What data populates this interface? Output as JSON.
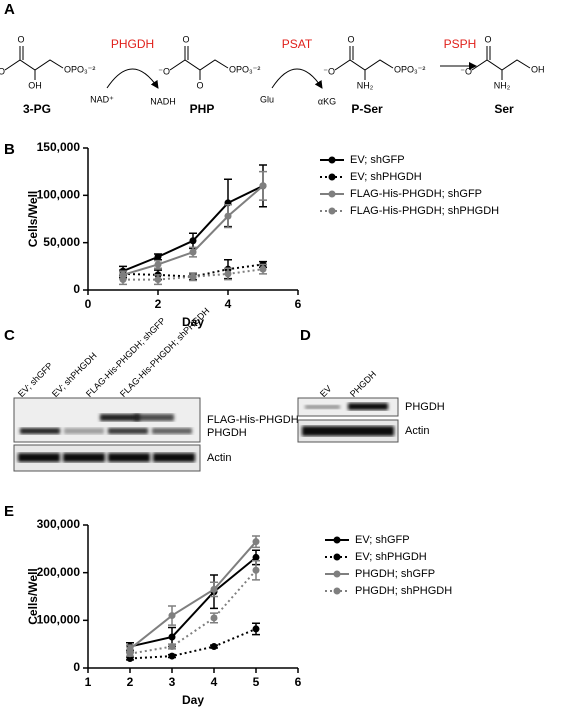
{
  "panel_a": {
    "letter": "A",
    "molecules": [
      {
        "name": "3-PG",
        "atoms": [
          "O",
          "⁻O",
          "OH",
          "OPO₃⁻²"
        ]
      },
      {
        "name": "PHP",
        "atoms": [
          "O",
          "⁻O",
          "O",
          "OPO₃⁻²"
        ]
      },
      {
        "name": "P-Ser",
        "atoms": [
          "O",
          "⁻O",
          "NH₂",
          "OPO₃⁻²"
        ]
      },
      {
        "name": "Ser",
        "atoms": [
          "O",
          "⁻O",
          "NH₂",
          "OH"
        ]
      }
    ],
    "enzymes": [
      "PHGDH",
      "PSAT",
      "PSPH"
    ],
    "cofactors": [
      [
        "NAD⁺",
        "NADH"
      ],
      [
        "Glu",
        "αKG"
      ]
    ]
  },
  "chart_data": [
    {
      "type": "line",
      "letter": "B",
      "x_label": "Day",
      "y_label": "Cells/Well",
      "x": [
        1,
        2,
        3,
        4,
        5
      ],
      "xlim": [
        0,
        6
      ],
      "xticks": [
        0,
        2,
        4,
        6
      ],
      "ylim": [
        0,
        150000
      ],
      "yticks": [
        0,
        {
          "value": 50000,
          "label": "50,000"
        },
        {
          "value": 100000,
          "label": "100,000"
        },
        {
          "value": 150000,
          "label": "150,000"
        }
      ],
      "series": [
        {
          "name": "EV; shGFP",
          "color": "#000000",
          "line_style": "solid",
          "values": [
            20000,
            35000,
            52000,
            92000,
            110000
          ],
          "errors": [
            5000,
            3000,
            8000,
            25000,
            22000
          ]
        },
        {
          "name": "EV; shPHGDH",
          "color": "#000000",
          "line_style": "dotted",
          "values": [
            17000,
            16000,
            14000,
            22000,
            27000
          ],
          "errors": [
            4000,
            5000,
            3000,
            10000,
            3000
          ]
        },
        {
          "name": "FLAG-His-PHGDH; shGFP",
          "color": "#7f7f7f",
          "line_style": "solid",
          "values": [
            16000,
            27000,
            40000,
            78000,
            110000
          ],
          "errors": [
            4000,
            4000,
            5000,
            12000,
            15000
          ]
        },
        {
          "name": "FLAG-His-PHGDH; shPHGDH",
          "color": "#7f7f7f",
          "line_style": "dotted",
          "values": [
            11000,
            11000,
            14000,
            17000,
            22000
          ],
          "errors": [
            5000,
            5000,
            4000,
            6000,
            5000
          ]
        }
      ]
    },
    {
      "type": "line",
      "letter": "E",
      "x_label": "Day",
      "y_label": "Cells/Well",
      "x": [
        2,
        3,
        4,
        5
      ],
      "xlim": [
        1,
        6
      ],
      "xticks": [
        1,
        2,
        3,
        4,
        5,
        6
      ],
      "ylim": [
        0,
        300000
      ],
      "yticks": [
        0,
        {
          "value": 100000,
          "label": "100,000"
        },
        {
          "value": 200000,
          "label": "200,000"
        },
        {
          "value": 300000,
          "label": "300,000"
        }
      ],
      "series": [
        {
          "name": "EV; shGFP",
          "color": "#000000",
          "line_style": "solid",
          "values": [
            45000,
            65000,
            160000,
            232000
          ],
          "errors": [
            8000,
            20000,
            35000,
            15000
          ]
        },
        {
          "name": "EV; shPHGDH",
          "color": "#000000",
          "line_style": "dotted",
          "values": [
            20000,
            25000,
            45000,
            82000
          ],
          "errors": [
            3000,
            3000,
            3000,
            12000
          ]
        },
        {
          "name": "PHGDH; shGFP",
          "color": "#7f7f7f",
          "line_style": "solid",
          "values": [
            40000,
            110000,
            165000,
            265000
          ],
          "errors": [
            8000,
            20000,
            15000,
            12000
          ]
        },
        {
          "name": "PHGDH; shPHGDH",
          "color": "#7f7f7f",
          "line_style": "dotted",
          "values": [
            30000,
            45000,
            105000,
            205000
          ],
          "errors": [
            5000,
            5000,
            10000,
            20000
          ]
        }
      ]
    }
  ],
  "panel_c": {
    "letter": "C",
    "lanes": [
      "EV; shGFP",
      "EV; shPHGDH",
      "FLAG-His-PHGDH; shGFP",
      "FLAG-His-PHGDH; shPHGDH"
    ],
    "bands": [
      "FLAG-His-PHGDH",
      "PHGDH",
      "Actin"
    ]
  },
  "panel_d": {
    "letter": "D",
    "lanes": [
      "EV",
      "PHGDH"
    ],
    "bands": [
      "PHGDH",
      "Actin"
    ]
  }
}
